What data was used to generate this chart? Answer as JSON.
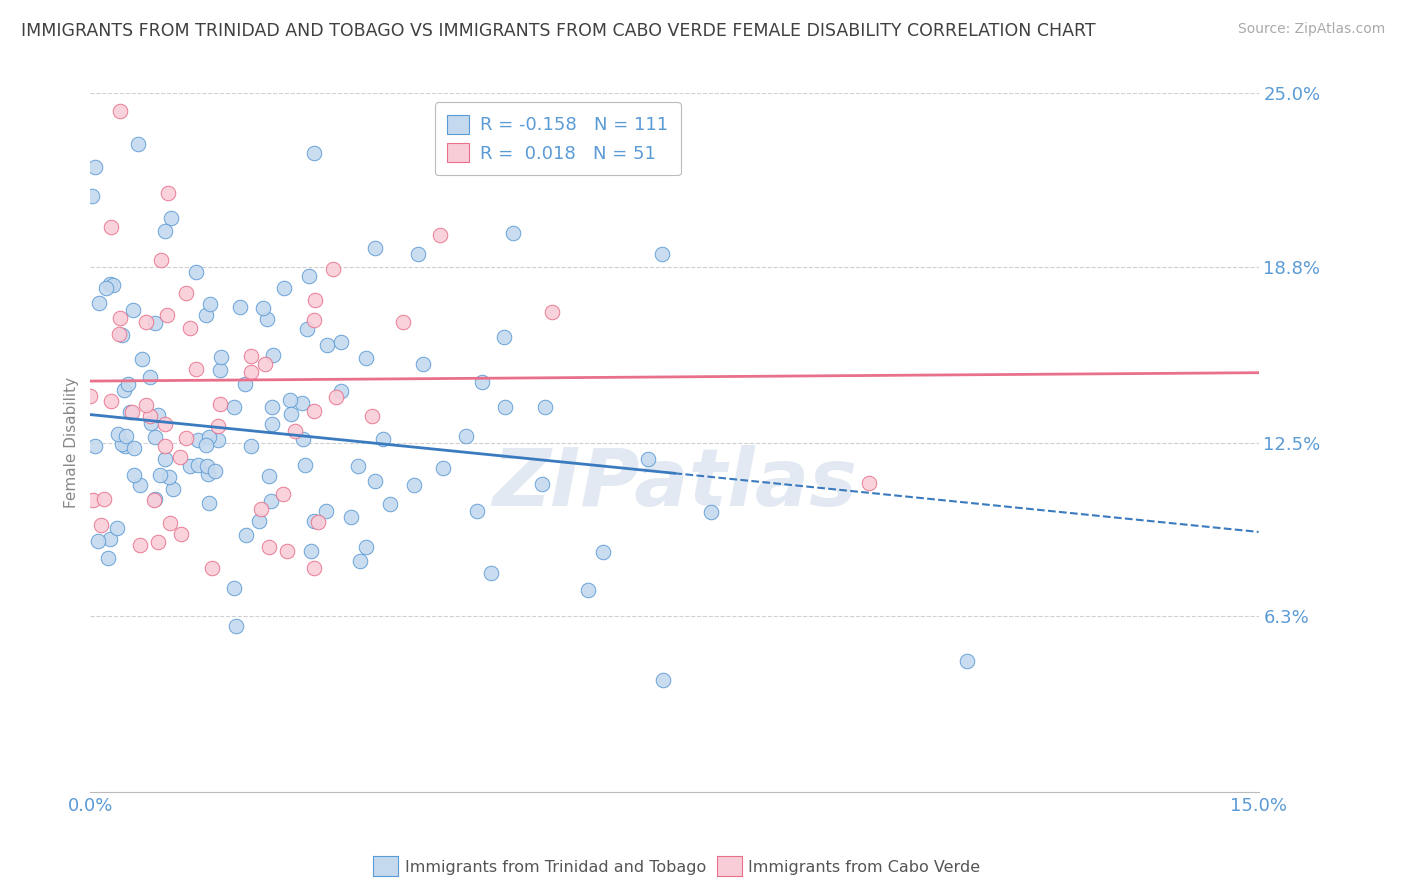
{
  "title": "IMMIGRANTS FROM TRINIDAD AND TOBAGO VS IMMIGRANTS FROM CABO VERDE FEMALE DISABILITY CORRELATION CHART",
  "source": "Source: ZipAtlas.com",
  "ylabel": "Female Disability",
  "xlim": [
    0.0,
    0.15
  ],
  "ylim": [
    0.0,
    0.25
  ],
  "ytick_labels": [
    "25.0%",
    "18.8%",
    "12.5%",
    "6.3%"
  ],
  "ytick_values": [
    0.25,
    0.188,
    0.125,
    0.063
  ],
  "series1": {
    "name": "Immigrants from Trinidad and Tobago",
    "R": -0.158,
    "N": 111,
    "color": "#c5d9ee",
    "edge_color": "#5b9bd5",
    "line_color": "#3a7abf",
    "line_solid_end": 0.075
  },
  "series2": {
    "name": "Immigrants from Cabo Verde",
    "R": 0.018,
    "N": 51,
    "color": "#f9cdd8",
    "edge_color": "#e8708a",
    "line_color": "#e8708a"
  },
  "watermark": "ZIPatlas",
  "background_color": "#ffffff",
  "grid_color": "#d0d0d0",
  "title_color": "#404040",
  "tick_color": "#5b9bd5"
}
